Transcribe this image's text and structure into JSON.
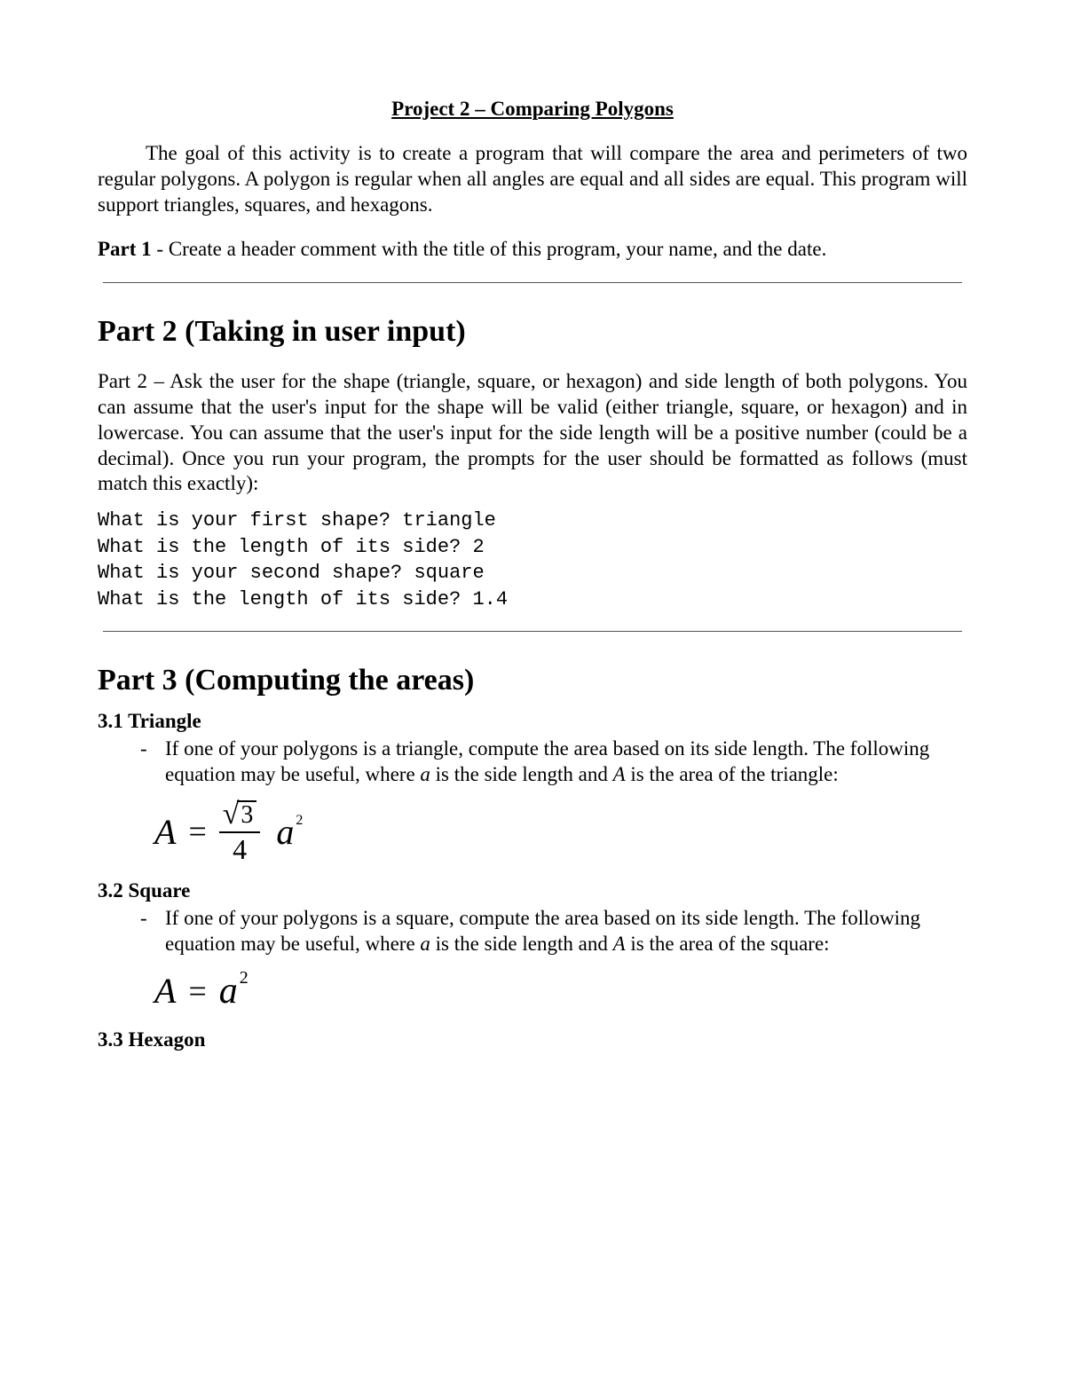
{
  "title": "Project 2 – Comparing Polygons",
  "intro": "The goal of this activity is to create a program that will compare the area and perimeters of two regular polygons. A polygon is regular when all angles are equal and all sides are equal. This program will support triangles, squares, and hexagons.",
  "part1": {
    "label": "Part 1",
    "text": " - Create a header comment with the title of this program, your name, and the date."
  },
  "part2": {
    "heading": "Part 2 (Taking in user input)",
    "text": "Part 2 – Ask the user for the shape (triangle, square, or hexagon) and side length of both polygons. You can assume that the user's input for the shape will be valid (either triangle, square, or hexagon) and in lowercase. You can assume that the user's input for the side length will be a positive number (could be a decimal). Once you run your program, the prompts for the user should be formatted as follows (must match this exactly):",
    "code": "What is your first shape? triangle\nWhat is the length of its side? 2\nWhat is your second shape? square\nWhat is the length of its side? 1.4"
  },
  "part3": {
    "heading": "Part 3 (Computing the areas)",
    "triangle": {
      "heading": "3.1 Triangle",
      "bullet_pre": "If one of your polygons is a triangle, compute the area based on its side length. The following equation may be useful, where ",
      "var_a": "a",
      "mid": " is the side length and ",
      "var_A": "A",
      "post": " is the area of the triangle:",
      "formula": {
        "A": "A",
        "eq": "=",
        "sqrt_of": "3",
        "denom": "4",
        "base": "a",
        "exp": "2"
      }
    },
    "square": {
      "heading": "3.2 Square",
      "bullet_pre": "If one of your polygons is a square, compute the area based on its side length. The following equation may be useful, where ",
      "var_a": "a",
      "mid": " is the side length and ",
      "var_A": "A",
      "post": " is the area of the square:",
      "formula": {
        "A": "A",
        "eq": "=",
        "base": "a",
        "exp": "2"
      }
    },
    "hexagon": {
      "heading": "3.3 Hexagon"
    }
  }
}
